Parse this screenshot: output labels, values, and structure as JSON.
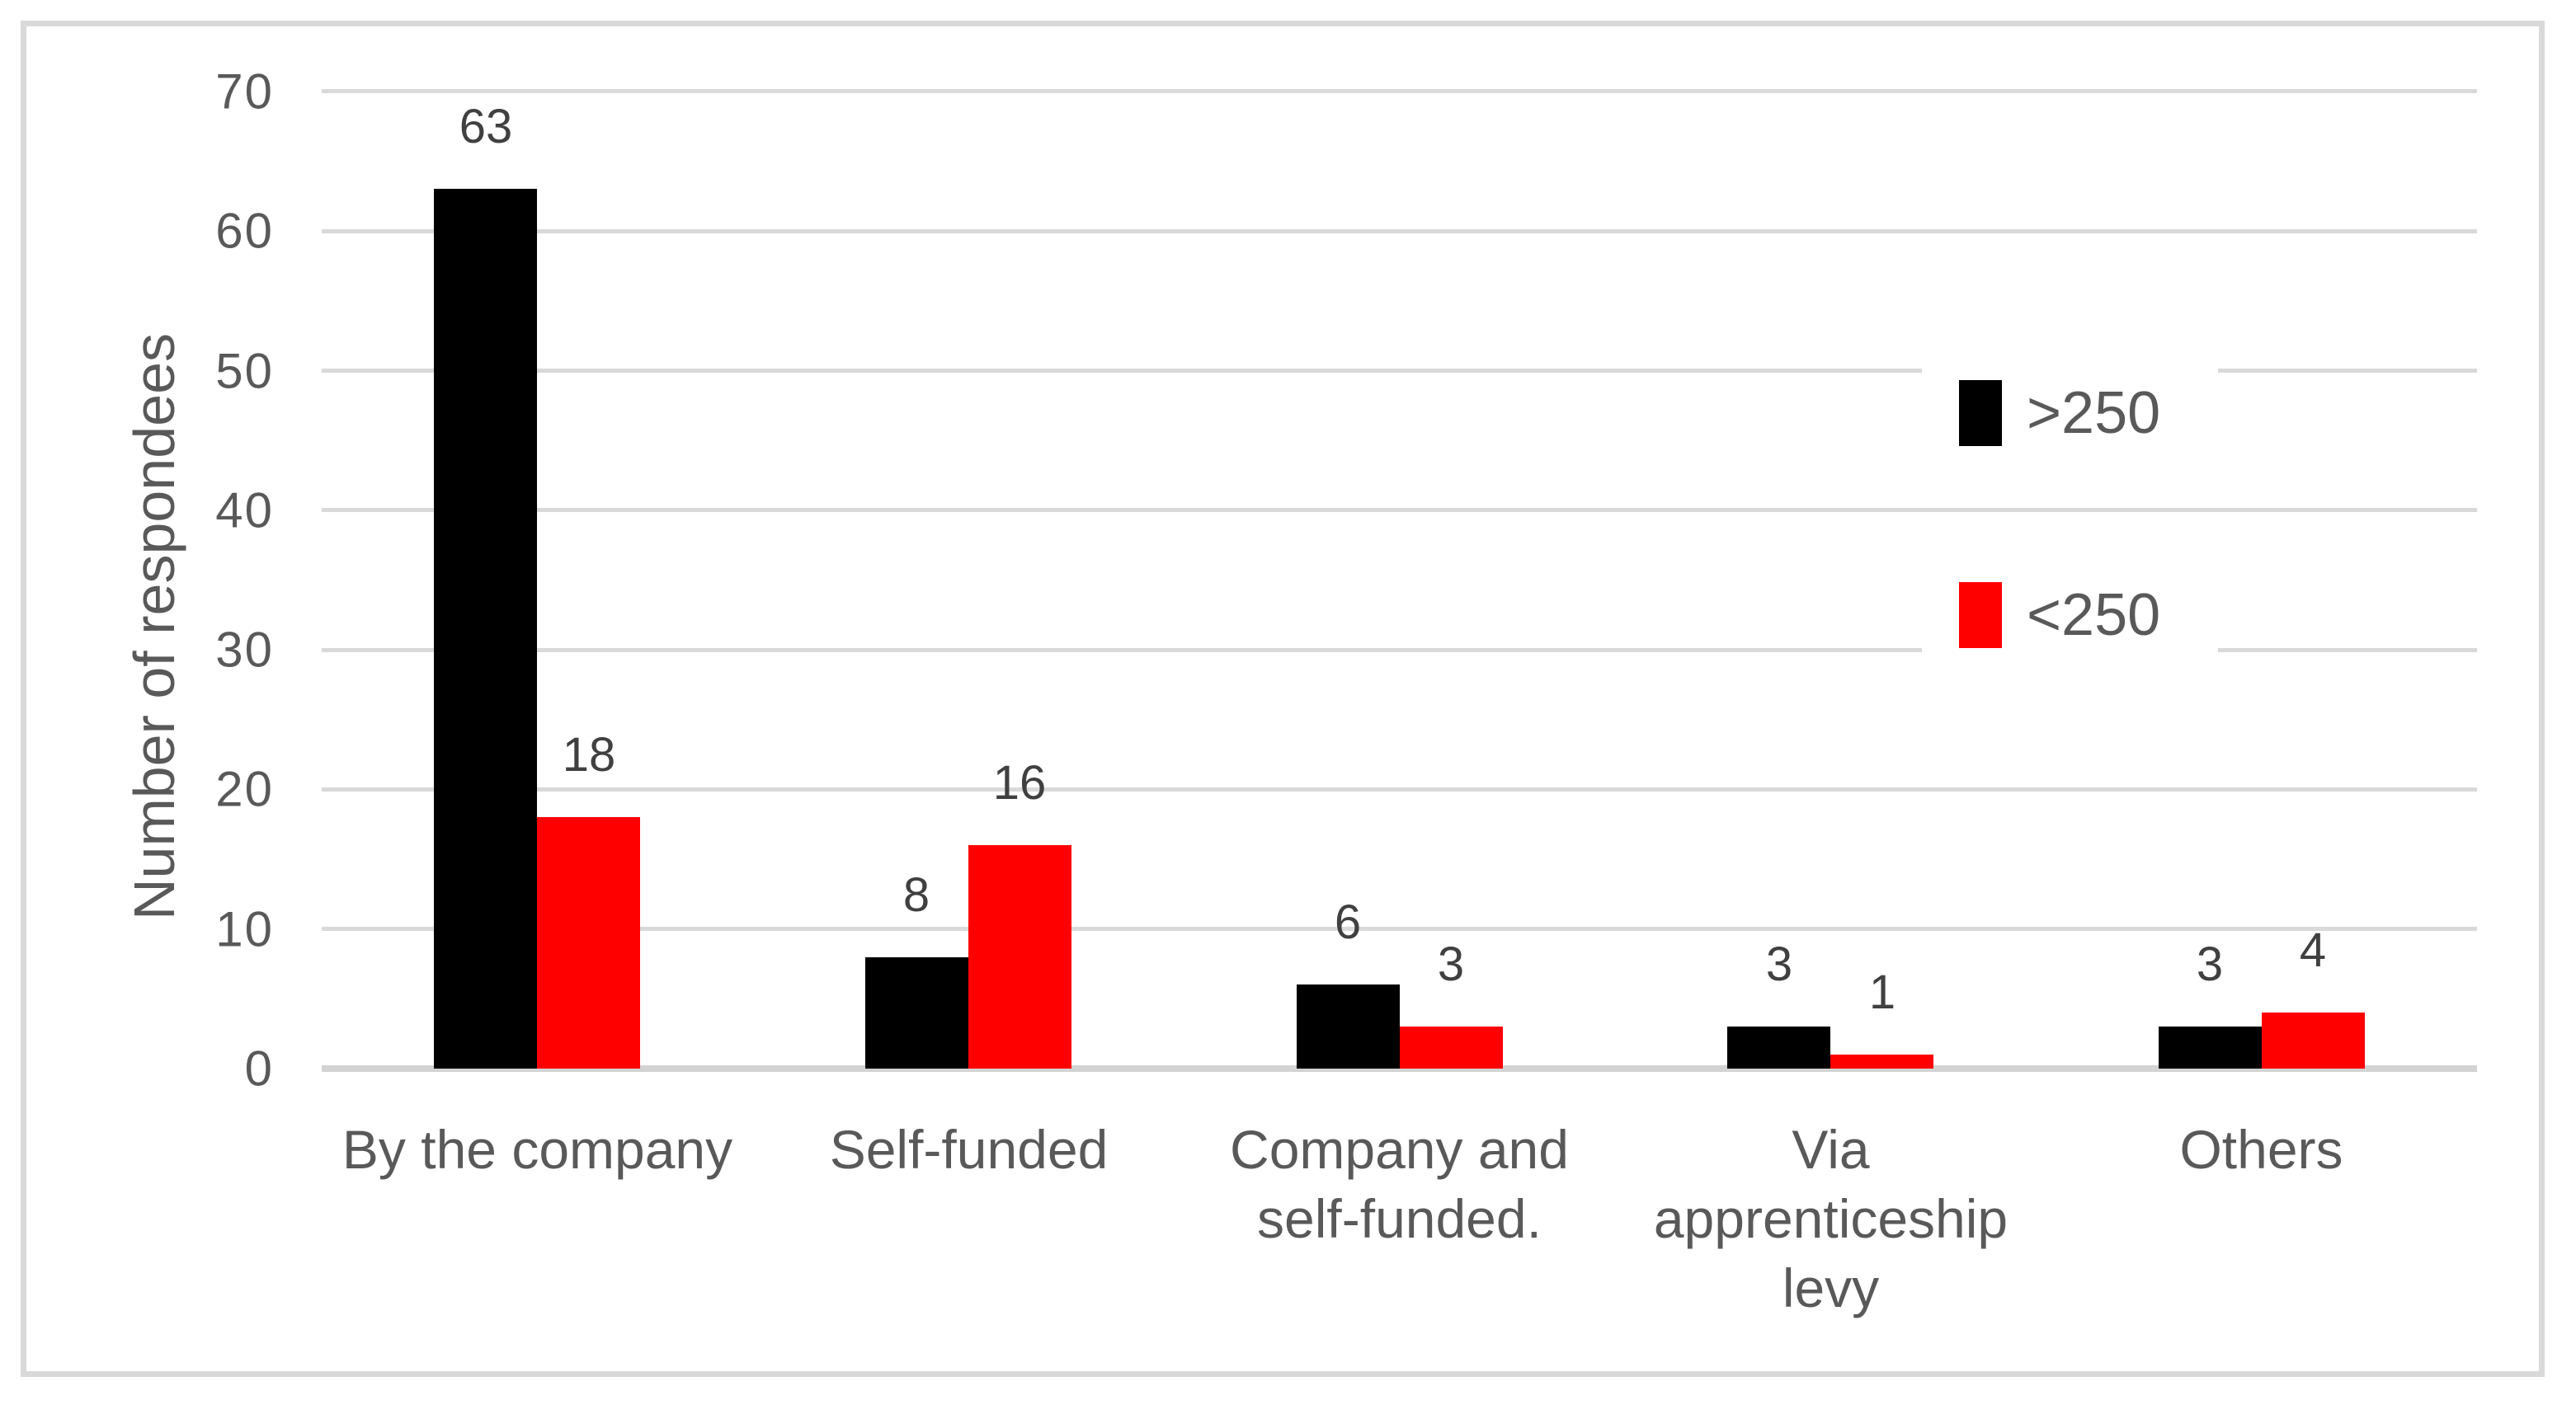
{
  "chart_data": {
    "type": "bar",
    "title": "",
    "xlabel": "",
    "ylabel": "Number of respondees",
    "categories": [
      "By the company",
      "Self-funded",
      "Company and\nself-funded.",
      "Via\napprenticeship\nlevy",
      "Others"
    ],
    "series": [
      {
        "name": ">250",
        "color": "#000000",
        "values": [
          63,
          8,
          6,
          3,
          3
        ]
      },
      {
        "name": "<250",
        "color": "#ff0000",
        "values": [
          18,
          16,
          3,
          1,
          4
        ]
      }
    ],
    "ylim": [
      0,
      70
    ],
    "yticks": [
      0,
      10,
      20,
      30,
      40,
      50,
      60,
      70
    ],
    "grid": true,
    "data_labels": true,
    "legend_position": "inside-top-right"
  },
  "colors": {
    "background": "#ffffff",
    "border": "#d9d9d9",
    "gridline": "#d9d9d9",
    "axis_text": "#595959",
    "data_label_text": "#404040"
  }
}
